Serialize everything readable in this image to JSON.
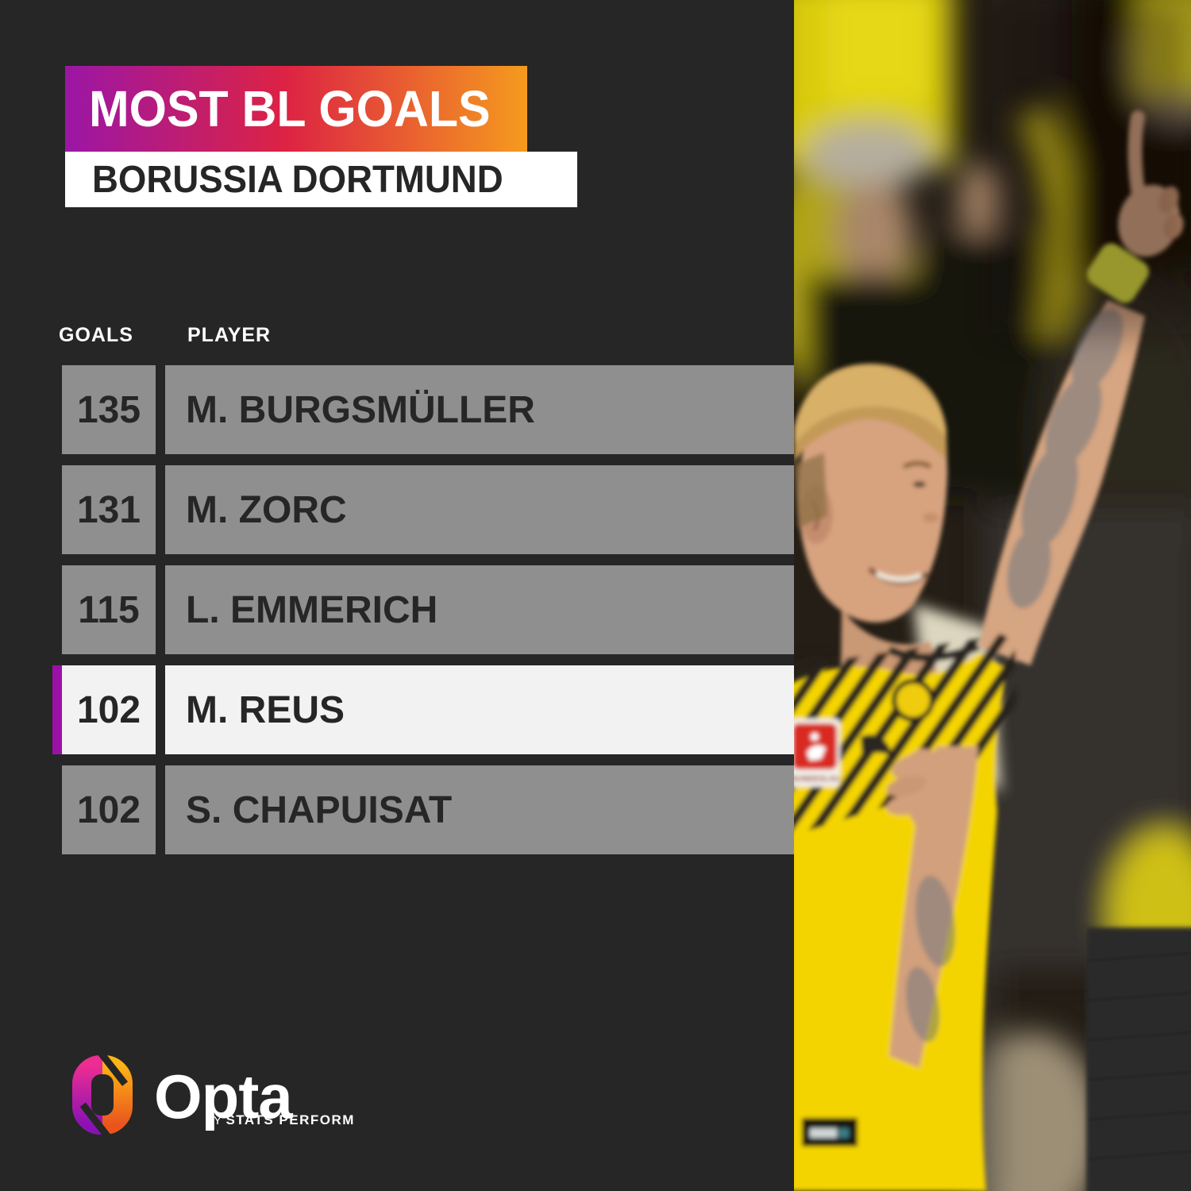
{
  "title": {
    "heading": "MOST BL GOALS",
    "subheading": "BORUSSIA DORTMUND"
  },
  "table": {
    "columns": {
      "goals": "GOALS",
      "player": "PLAYER"
    },
    "rows": [
      {
        "goals": "135",
        "player": "M. BURGSMÜLLER",
        "highlighted": false
      },
      {
        "goals": "131",
        "player": "M. ZORC",
        "highlighted": false
      },
      {
        "goals": "115",
        "player": "L. EMMERICH",
        "highlighted": false
      },
      {
        "goals": "102",
        "player": "M. REUS",
        "highlighted": true
      },
      {
        "goals": "102",
        "player": "S. CHAPUISAT",
        "highlighted": false
      }
    ]
  },
  "footer": {
    "opta_label": "Opta",
    "by_label": "BY",
    "brand_label": "STATS PERFORM",
    "logo_icon": "opta-ring-logo"
  },
  "photo": {
    "alt": "Marco Reus in yellow Borussia Dortmund shirt celebrating with raised tattooed arm and pointing finger",
    "patch_text": "BUNDESLIGA"
  },
  "colors": {
    "background": "#262626",
    "row_gray": "#8f8f8f",
    "row_text": "#262626",
    "highlight_bg": "#f2f2f2",
    "accent_purple": "#9c10a8",
    "banner_gradient": [
      "#9b16a6",
      "#dd2343",
      "#f59b1e"
    ],
    "banner_text": "#ffffff",
    "subtitle_bg": "#ffffff",
    "subtitle_text": "#262626",
    "kit_yellow": "#f4d402"
  },
  "chart_data": {
    "type": "table",
    "title": "MOST BL GOALS",
    "subtitle": "BORUSSIA DORTMUND",
    "columns": [
      "GOALS",
      "PLAYER"
    ],
    "rows": [
      [
        135,
        "M. BURGSMÜLLER"
      ],
      [
        131,
        "M. ZORC"
      ],
      [
        115,
        "L. EMMERICH"
      ],
      [
        102,
        "M. REUS"
      ],
      [
        102,
        "S. CHAPUISAT"
      ]
    ],
    "highlighted_row": "M. REUS",
    "source": "Opta BY STATS PERFORM",
    "layout": "ranked list, highlighted row marked with purple left bar and white background"
  }
}
